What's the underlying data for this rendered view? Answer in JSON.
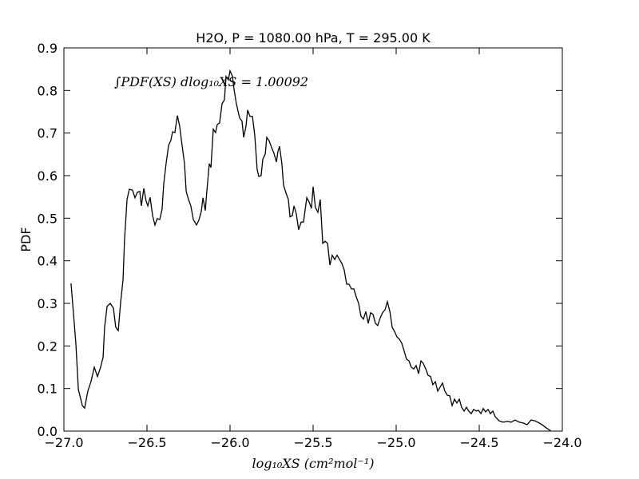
{
  "chart_data": {
    "type": "line",
    "title": "H2O, P = 1080.00 hPa, T = 295.00 K",
    "xlabel": "log₁₀XS (cm²mol⁻¹)",
    "ylabel": "PDF",
    "annotation": "∫PDF(XS) dlog₁₀XS = 1.00092",
    "color": "#000000",
    "xlim": [
      -27,
      -24
    ],
    "ylim": [
      0,
      0.9
    ],
    "xticks": [
      {
        "value": -27,
        "label": "−27.0"
      },
      {
        "value": -26.5,
        "label": "−26.5"
      },
      {
        "value": -26,
        "label": "−26.0"
      },
      {
        "value": -25.5,
        "label": "−25.5"
      },
      {
        "value": -25,
        "label": "−25.0"
      },
      {
        "value": -24.5,
        "label": "−24.5"
      },
      {
        "value": -24,
        "label": "−24.0"
      }
    ],
    "yticks": [
      {
        "value": 0,
        "label": "0.0"
      },
      0.1,
      0.2,
      0.3,
      0.4,
      0.5,
      0.6,
      0.7,
      0.8,
      0.9
    ],
    "x": [
      -26.957,
      -26.928,
      -26.913,
      -26.889,
      -26.875,
      -26.856,
      -26.837,
      -26.817,
      -26.798,
      -26.779,
      -26.764,
      -26.755,
      -26.74,
      -26.721,
      -26.702,
      -26.688,
      -26.673,
      -26.659,
      -26.644,
      -26.635,
      -26.62,
      -26.606,
      -26.587,
      -26.572,
      -26.558,
      -26.543,
      -26.534,
      -26.519,
      -26.505,
      -26.495,
      -26.481,
      -26.466,
      -26.452,
      -26.438,
      -26.423,
      -26.409,
      -26.399,
      -26.385,
      -26.37,
      -26.356,
      -26.346,
      -26.332,
      -26.317,
      -26.303,
      -26.293,
      -26.274,
      -26.264,
      -26.25,
      -26.236,
      -26.221,
      -26.202,
      -26.188,
      -26.173,
      -26.163,
      -26.149,
      -26.139,
      -26.125,
      -26.115,
      -26.101,
      -26.087,
      -26.077,
      -26.063,
      -26.048,
      -26.034,
      -26.024,
      -26.01,
      -26.0,
      -25.986,
      -25.976,
      -25.962,
      -25.942,
      -25.928,
      -25.918,
      -25.904,
      -25.894,
      -25.88,
      -25.865,
      -25.851,
      -25.837,
      -25.827,
      -25.813,
      -25.803,
      -25.788,
      -25.779,
      -25.764,
      -25.75,
      -25.736,
      -25.721,
      -25.712,
      -25.702,
      -25.688,
      -25.678,
      -25.663,
      -25.649,
      -25.639,
      -25.625,
      -25.615,
      -25.601,
      -25.587,
      -25.572,
      -25.558,
      -25.538,
      -25.524,
      -25.51,
      -25.5,
      -25.486,
      -25.471,
      -25.457,
      -25.442,
      -25.428,
      -25.413,
      -25.399,
      -25.385,
      -25.37,
      -25.356,
      -25.341,
      -25.327,
      -25.313,
      -25.298,
      -25.284,
      -25.269,
      -25.255,
      -25.24,
      -25.226,
      -25.212,
      -25.197,
      -25.183,
      -25.168,
      -25.154,
      -25.139,
      -25.125,
      -25.111,
      -25.096,
      -25.082,
      -25.067,
      -25.053,
      -25.038,
      -25.024,
      -25.01,
      -24.995,
      -24.981,
      -24.966,
      -24.952,
      -24.938,
      -24.923,
      -24.909,
      -24.894,
      -24.88,
      -24.865,
      -24.851,
      -24.837,
      -24.822,
      -24.808,
      -24.793,
      -24.779,
      -24.764,
      -24.75,
      -24.736,
      -24.721,
      -24.707,
      -24.692,
      -24.678,
      -24.663,
      -24.649,
      -24.635,
      -24.62,
      -24.606,
      -24.591,
      -24.577,
      -24.563,
      -24.548,
      -24.534,
      -24.519,
      -24.505,
      -24.49,
      -24.476,
      -24.462,
      -24.447,
      -24.433,
      -24.418,
      -24.404,
      -24.38,
      -24.356,
      -24.332,
      -24.308,
      -24.284,
      -24.26,
      -24.236,
      -24.212,
      -24.188,
      -24.163,
      -24.139,
      -24.115,
      -24.091,
      -24.067
    ],
    "values": [
      0.347,
      0.206,
      0.098,
      0.06,
      0.054,
      0.094,
      0.116,
      0.15,
      0.128,
      0.15,
      0.174,
      0.244,
      0.293,
      0.3,
      0.289,
      0.244,
      0.236,
      0.3,
      0.356,
      0.45,
      0.544,
      0.568,
      0.566,
      0.548,
      0.561,
      0.563,
      0.529,
      0.57,
      0.54,
      0.529,
      0.549,
      0.506,
      0.484,
      0.499,
      0.497,
      0.521,
      0.581,
      0.628,
      0.671,
      0.683,
      0.703,
      0.701,
      0.741,
      0.716,
      0.684,
      0.628,
      0.563,
      0.544,
      0.529,
      0.497,
      0.484,
      0.495,
      0.516,
      0.548,
      0.518,
      0.566,
      0.628,
      0.619,
      0.709,
      0.701,
      0.72,
      0.724,
      0.769,
      0.778,
      0.833,
      0.825,
      0.846,
      0.834,
      0.803,
      0.769,
      0.735,
      0.728,
      0.69,
      0.716,
      0.754,
      0.739,
      0.739,
      0.694,
      0.615,
      0.598,
      0.6,
      0.638,
      0.651,
      0.69,
      0.681,
      0.666,
      0.653,
      0.632,
      0.656,
      0.669,
      0.628,
      0.578,
      0.559,
      0.544,
      0.503,
      0.506,
      0.529,
      0.51,
      0.473,
      0.491,
      0.491,
      0.548,
      0.538,
      0.523,
      0.574,
      0.525,
      0.514,
      0.544,
      0.441,
      0.446,
      0.441,
      0.39,
      0.413,
      0.403,
      0.413,
      0.403,
      0.394,
      0.379,
      0.345,
      0.345,
      0.334,
      0.334,
      0.315,
      0.3,
      0.27,
      0.263,
      0.281,
      0.253,
      0.278,
      0.274,
      0.253,
      0.248,
      0.266,
      0.278,
      0.285,
      0.304,
      0.281,
      0.244,
      0.234,
      0.221,
      0.216,
      0.206,
      0.188,
      0.169,
      0.165,
      0.15,
      0.146,
      0.154,
      0.135,
      0.165,
      0.159,
      0.146,
      0.131,
      0.128,
      0.109,
      0.116,
      0.094,
      0.103,
      0.113,
      0.094,
      0.084,
      0.083,
      0.06,
      0.075,
      0.066,
      0.075,
      0.056,
      0.047,
      0.056,
      0.047,
      0.041,
      0.051,
      0.047,
      0.049,
      0.041,
      0.053,
      0.045,
      0.051,
      0.041,
      0.047,
      0.034,
      0.024,
      0.021,
      0.023,
      0.021,
      0.026,
      0.021,
      0.019,
      0.015,
      0.026,
      0.024,
      0.019,
      0.013,
      0.006,
      0.0
    ]
  }
}
